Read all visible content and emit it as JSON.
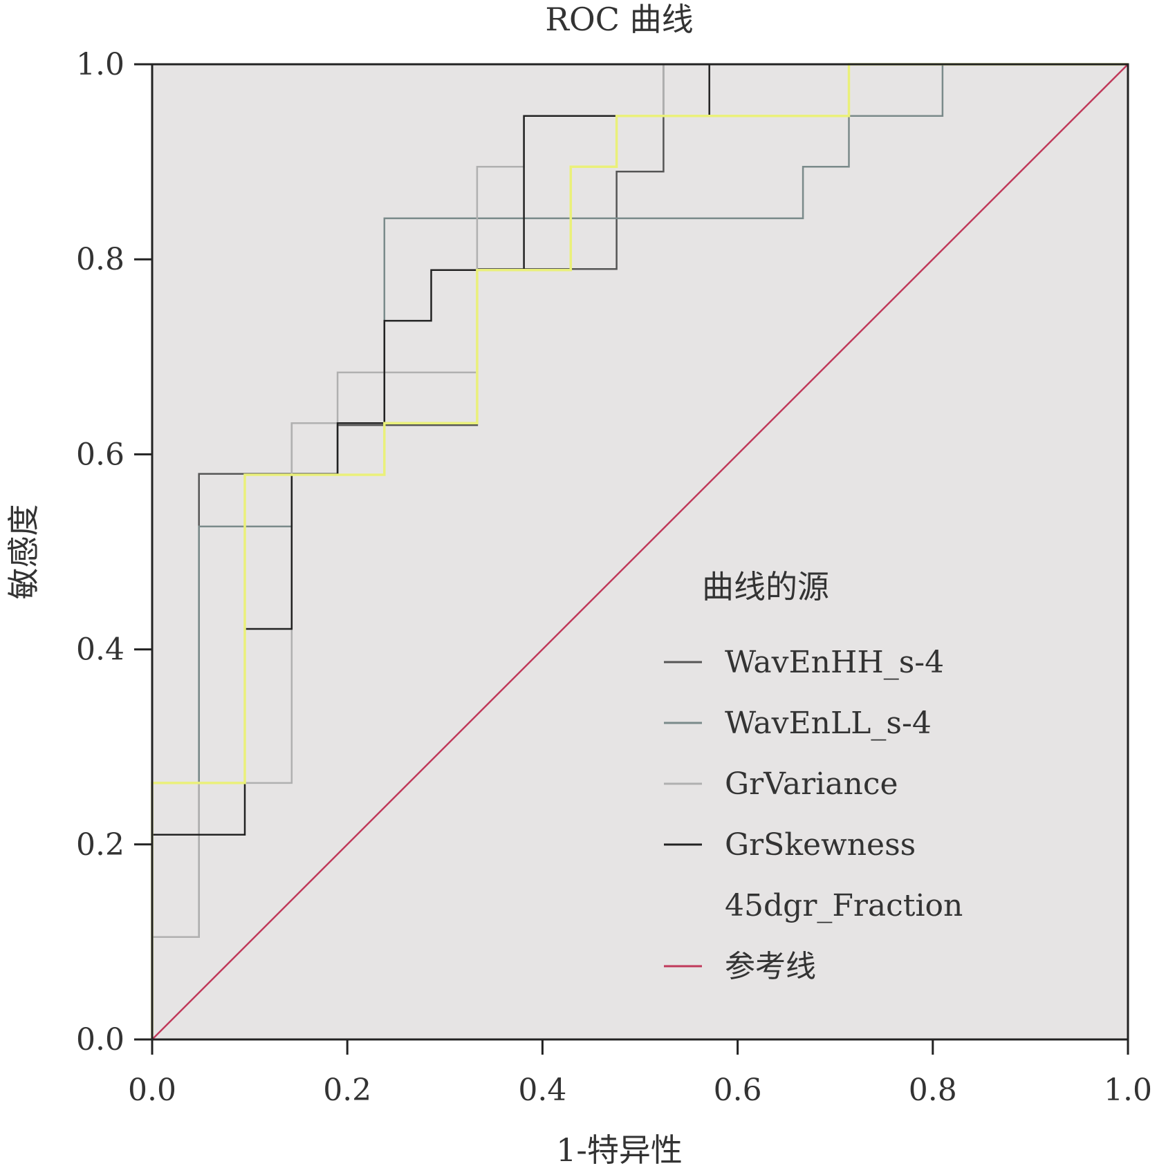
{
  "chart_data": {
    "type": "line",
    "title": "ROC 曲线",
    "xlabel": "1-特异性",
    "ylabel": "敏感度",
    "xlim": [
      0,
      1
    ],
    "ylim": [
      0,
      1
    ],
    "xticks": [
      "0.0",
      "0.2",
      "0.4",
      "0.6",
      "0.8",
      "1.0"
    ],
    "yticks": [
      "0.0",
      "0.2",
      "0.4",
      "0.6",
      "0.8",
      "1.0"
    ],
    "grid": false,
    "plot_background": "#e6e4e4",
    "legend_title": "曲线的源",
    "legend_position": "right-center",
    "series": [
      {
        "name": "WavEnHH_s-4",
        "color": "#555555",
        "x": [
          0,
          0,
          0.048,
          0.048,
          0.095,
          0.095,
          0.143,
          0.143,
          0.19,
          0.19,
          0.238,
          0.238,
          0.333,
          0.333,
          0.381,
          0.381,
          0.476,
          0.476,
          0.524,
          0.524,
          1
        ],
        "y": [
          0,
          0.21,
          0.21,
          0.58,
          0.58,
          0.58,
          0.58,
          0.58,
          0.58,
          0.63,
          0.63,
          0.63,
          0.63,
          0.79,
          0.79,
          0.79,
          0.79,
          0.89,
          0.89,
          1.0,
          1.0
        ]
      },
      {
        "name": "WavEnLL_s-4",
        "color": "#7a8a8a",
        "x": [
          0,
          0,
          0.048,
          0.048,
          0.143,
          0.143,
          0.238,
          0.238,
          0.667,
          0.667,
          0.714,
          0.714,
          0.81,
          0.81,
          1
        ],
        "y": [
          0,
          0.105,
          0.105,
          0.526,
          0.526,
          0.632,
          0.632,
          0.842,
          0.842,
          0.895,
          0.895,
          0.947,
          0.947,
          1.0,
          1.0
        ]
      },
      {
        "name": "GrVariance",
        "color": "#b0b0b0",
        "x": [
          0,
          0,
          0.048,
          0.048,
          0.143,
          0.143,
          0.19,
          0.19,
          0.333,
          0.333,
          0.381,
          0.381,
          0.524,
          0.524,
          1
        ],
        "y": [
          0,
          0.105,
          0.105,
          0.263,
          0.263,
          0.632,
          0.632,
          0.684,
          0.684,
          0.895,
          0.895,
          0.947,
          0.947,
          1.0,
          1.0
        ]
      },
      {
        "name": "GrSkewness",
        "color": "#222222",
        "x": [
          0,
          0,
          0.095,
          0.095,
          0.143,
          0.143,
          0.19,
          0.19,
          0.238,
          0.238,
          0.286,
          0.286,
          0.381,
          0.381,
          0.476,
          0.476,
          0.571,
          0.571,
          1
        ],
        "y": [
          0,
          0.21,
          0.21,
          0.421,
          0.421,
          0.579,
          0.579,
          0.632,
          0.632,
          0.737,
          0.737,
          0.789,
          0.789,
          0.947,
          0.947,
          0.947,
          0.947,
          1.0,
          1.0
        ]
      },
      {
        "name": "45dgr_Fraction",
        "color": "#eaf07a",
        "x": [
          0,
          0,
          0.095,
          0.095,
          0.238,
          0.238,
          0.286,
          0.286,
          0.333,
          0.333,
          0.429,
          0.429,
          0.476,
          0.476,
          0.714,
          0.714,
          1
        ],
        "y": [
          0,
          0.263,
          0.263,
          0.579,
          0.579,
          0.632,
          0.632,
          0.632,
          0.632,
          0.789,
          0.789,
          0.895,
          0.895,
          0.947,
          0.947,
          1.0,
          1.0
        ]
      },
      {
        "name": "参考线",
        "color": "#c0395a",
        "x": [
          0,
          1
        ],
        "y": [
          0,
          1
        ]
      }
    ]
  }
}
